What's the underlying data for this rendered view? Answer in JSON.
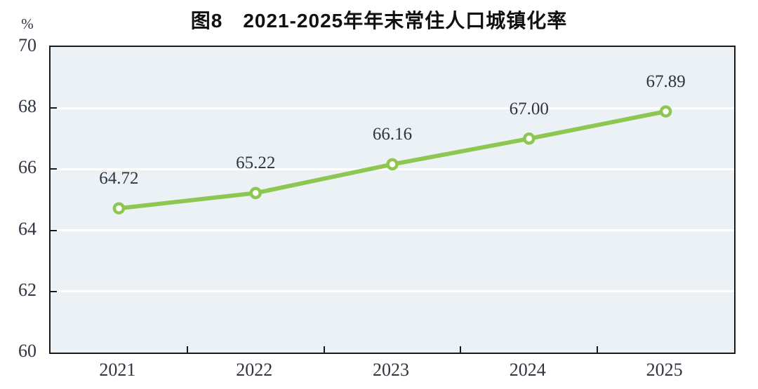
{
  "chart_data": {
    "type": "line",
    "title": "图8　2021-2025年年末常住人口城镇化率",
    "unit_label": "%",
    "categories": [
      "2021",
      "2022",
      "2023",
      "2024",
      "2025"
    ],
    "series": [
      {
        "name": "年末常住人口城镇化率",
        "values": [
          64.72,
          65.22,
          66.16,
          67.0,
          67.89
        ]
      }
    ],
    "data_labels": [
      "64.72",
      "65.22",
      "66.16",
      "67.00",
      "67.89"
    ],
    "ylim": [
      60,
      70
    ],
    "yticks": [
      60,
      62,
      64,
      66,
      68,
      70
    ],
    "grid": true,
    "legend_position": "none",
    "colors": {
      "line": "#8ec652",
      "marker_fill": "#ffffff",
      "plot_bg": "#ecf1f5",
      "grid": "#ffffff",
      "axis_border": "#1a1a1a",
      "text": "#2f3440",
      "title": "#111111"
    }
  }
}
